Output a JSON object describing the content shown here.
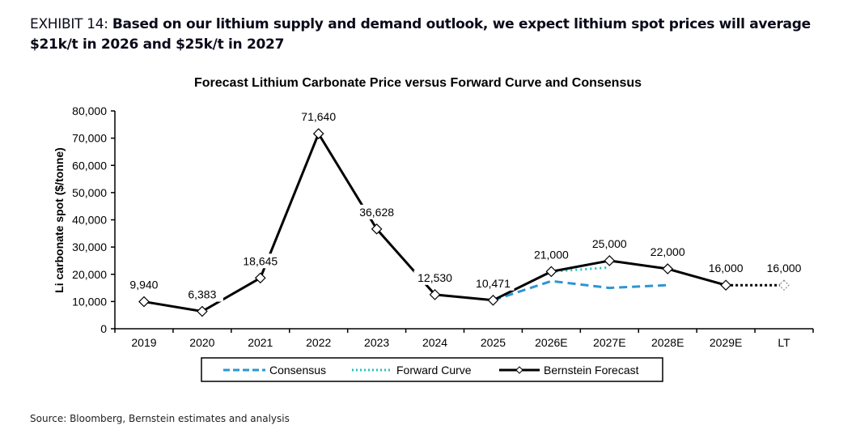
{
  "header": {
    "exhibit_label": "EXHIBIT 14: ",
    "exhibit_title": "Based on our lithium supply and demand outlook, we expect lithium spot prices will average $21k/t in 2026 and $25k/t in 2027"
  },
  "source": "Source: Bloomberg, Bernstein estimates and analysis",
  "colors": {
    "bernstein": "#000000",
    "consensus": "#2e95d3",
    "forward_curve": "#27c2c0"
  },
  "chart_data": {
    "type": "line",
    "title": "Forecast Lithium Carbonate Price versus Forward Curve and Consensus",
    "xlabel": "",
    "ylabel": "Li carbonate spot ($/tonne)",
    "ylim": [
      0,
      80000
    ],
    "yticks": [
      0,
      10000,
      20000,
      30000,
      40000,
      50000,
      60000,
      70000,
      80000
    ],
    "ytick_labels": [
      "0",
      "10,000",
      "20,000",
      "30,000",
      "40,000",
      "50,000",
      "60,000",
      "70,000",
      "80,000"
    ],
    "categories": [
      "2019",
      "2020",
      "2021",
      "2022",
      "2023",
      "2024",
      "2025",
      "2026E",
      "2027E",
      "2028E",
      "2029E",
      "LT"
    ],
    "grid": false,
    "legend_position": "bottom",
    "series": [
      {
        "name": "Consensus",
        "style": "dashed",
        "values": [
          null,
          null,
          null,
          null,
          null,
          null,
          10471,
          17500,
          15000,
          16000,
          null,
          null
        ]
      },
      {
        "name": "Forward Curve",
        "style": "dotted",
        "values": [
          null,
          null,
          null,
          null,
          null,
          null,
          null,
          21000,
          22500,
          null,
          null,
          null
        ]
      },
      {
        "name": "Bernstein Forecast",
        "style": "solid-with-diamond-markers",
        "values": [
          9940,
          6383,
          18645,
          71640,
          36628,
          12530,
          10471,
          21000,
          25000,
          22000,
          16000,
          16000
        ],
        "data_labels": [
          "9,940",
          "6,383",
          "18,645",
          "71,640",
          "36,628",
          "12,530",
          "10,471",
          "21,000",
          "25,000",
          "22,000",
          "16,000",
          "16,000"
        ],
        "dotted_segment_from": "2029E"
      }
    ]
  }
}
